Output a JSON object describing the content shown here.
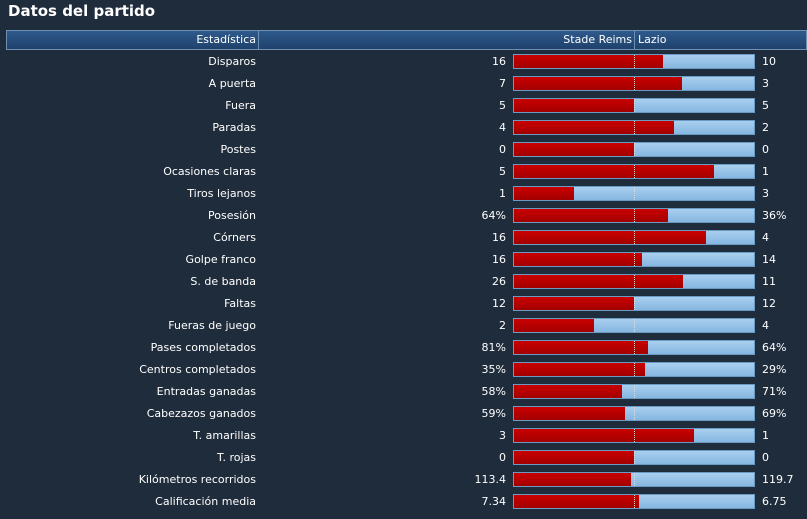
{
  "title": "Datos del partido",
  "header": {
    "stat": "Estadística",
    "home": "Stade Reims",
    "away": "Lazio"
  },
  "colors": {
    "home": "#b30000",
    "away": "#9cc6ea",
    "background": "#1f2c3c"
  },
  "stats": [
    {
      "label": "Disparos",
      "home": "16",
      "away": "10",
      "home_share": 0.62
    },
    {
      "label": "A puerta",
      "home": "7",
      "away": "3",
      "home_share": 0.7
    },
    {
      "label": "Fuera",
      "home": "5",
      "away": "5",
      "home_share": 0.5
    },
    {
      "label": "Paradas",
      "home": "4",
      "away": "2",
      "home_share": 0.667
    },
    {
      "label": "Postes",
      "home": "0",
      "away": "0",
      "home_share": 0.5
    },
    {
      "label": "Ocasiones claras",
      "home": "5",
      "away": "1",
      "home_share": 0.833
    },
    {
      "label": "Tiros lejanos",
      "home": "1",
      "away": "3",
      "home_share": 0.25
    },
    {
      "label": "Posesión",
      "home": "64%",
      "away": "36%",
      "home_share": 0.64
    },
    {
      "label": "Córners",
      "home": "16",
      "away": "4",
      "home_share": 0.8
    },
    {
      "label": "Golpe franco",
      "home": "16",
      "away": "14",
      "home_share": 0.533
    },
    {
      "label": "S. de banda",
      "home": "26",
      "away": "11",
      "home_share": 0.703
    },
    {
      "label": "Faltas",
      "home": "12",
      "away": "12",
      "home_share": 0.5
    },
    {
      "label": "Fueras de juego",
      "home": "2",
      "away": "4",
      "home_share": 0.333
    },
    {
      "label": "Pases completados",
      "home": "81%",
      "away": "64%",
      "home_share": 0.559
    },
    {
      "label": "Centros completados",
      "home": "35%",
      "away": "29%",
      "home_share": 0.547
    },
    {
      "label": "Entradas ganadas",
      "home": "58%",
      "away": "71%",
      "home_share": 0.45
    },
    {
      "label": "Cabezazos ganados",
      "home": "59%",
      "away": "69%",
      "home_share": 0.461
    },
    {
      "label": "T. amarillas",
      "home": "3",
      "away": "1",
      "home_share": 0.75
    },
    {
      "label": "T. rojas",
      "home": "0",
      "away": "0",
      "home_share": 0.5
    },
    {
      "label": "Kilómetros recorridos",
      "home": "113.4",
      "away": "119.7",
      "home_share": 0.486
    },
    {
      "label": "Calificación media",
      "home": "7.34",
      "away": "6.75",
      "home_share": 0.521
    }
  ]
}
